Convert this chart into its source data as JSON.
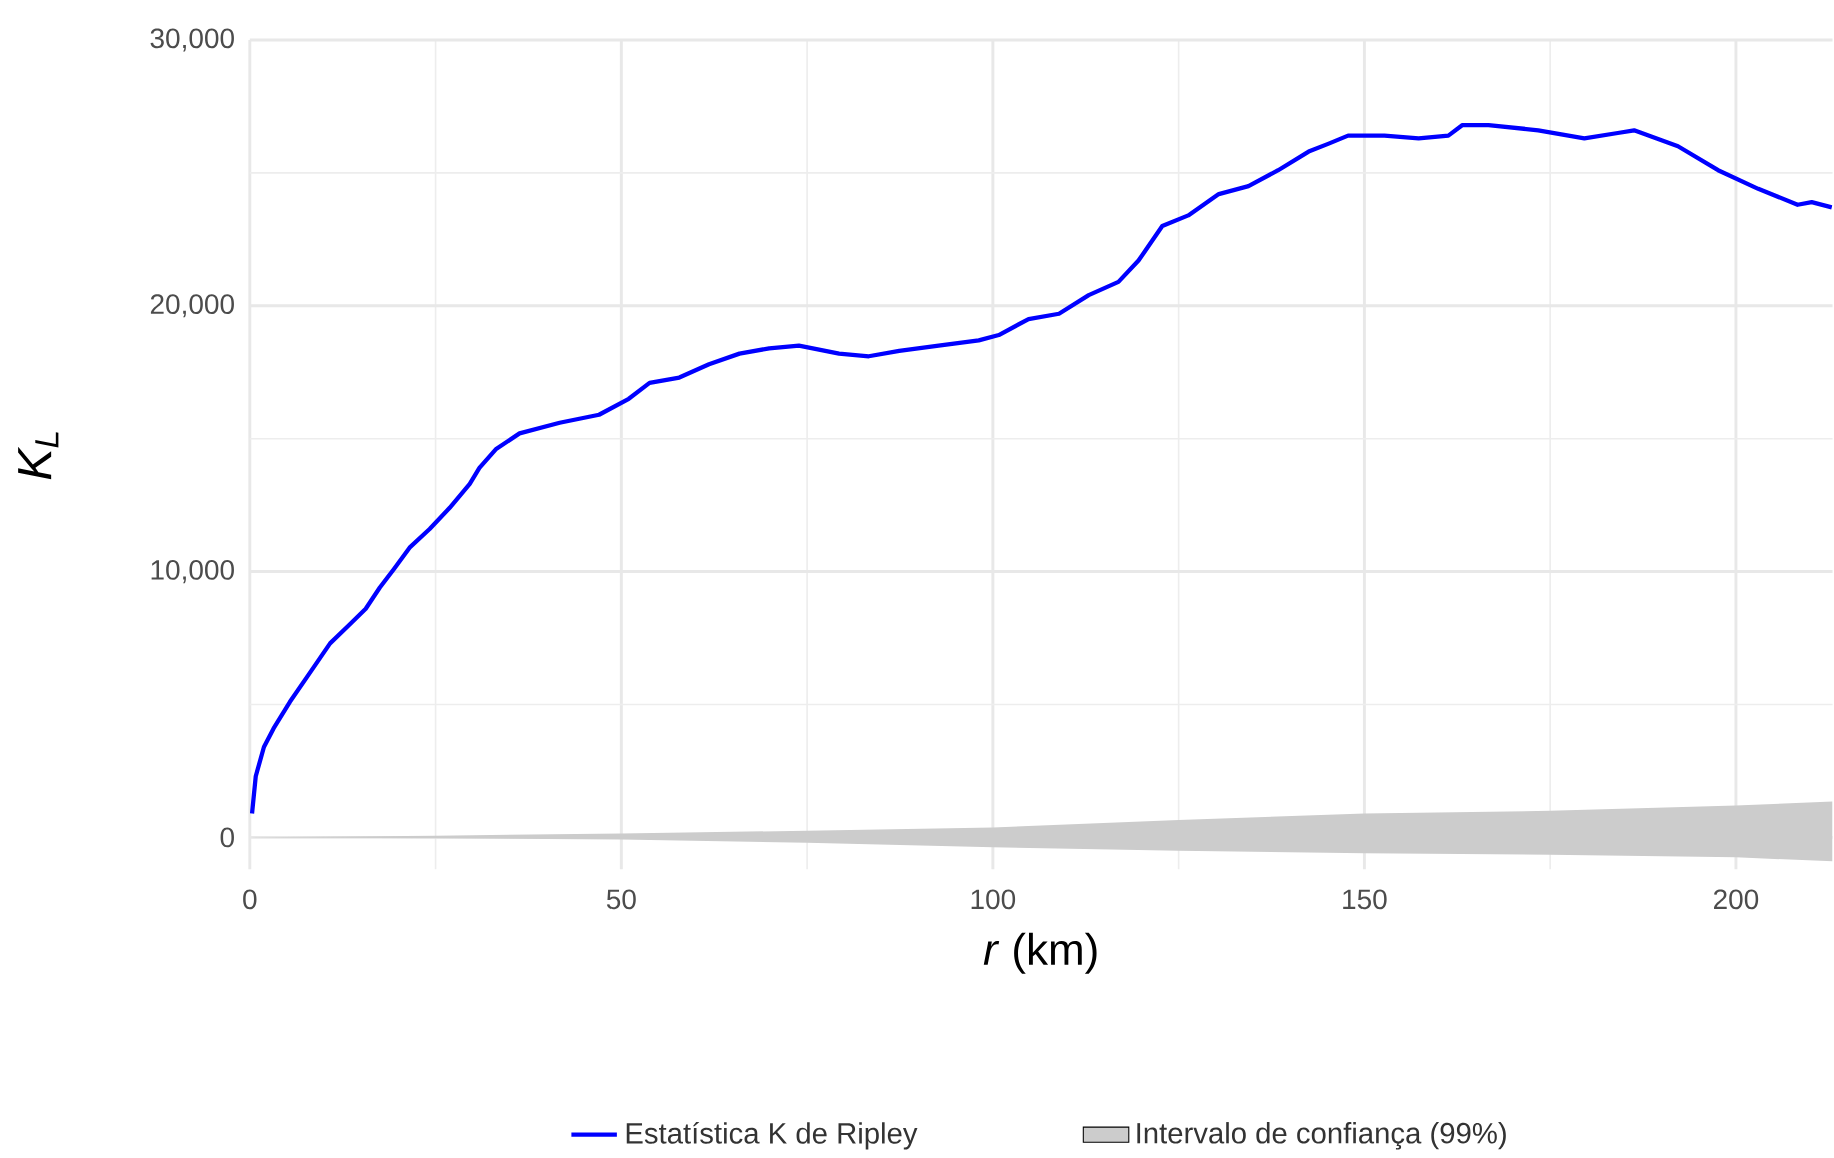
{
  "chart_data": {
    "type": "line",
    "xlabel": "*r* (km)",
    "ylabel": "K$_{L}$",
    "xlim": [
      0,
      213
    ],
    "ylim": [
      -1200,
      30000
    ],
    "xticks": [
      0,
      50,
      100,
      150,
      200
    ],
    "yticks": [
      {
        "value": 0,
        "label": "0"
      },
      {
        "value": 10000,
        "label": "10,000"
      },
      {
        "value": 20000,
        "label": "20,000"
      },
      {
        "value": 30000,
        "label": "30,000"
      }
    ],
    "grid": true,
    "legend": "bottom",
    "series": [
      {
        "name": "Estatística K de Ripley",
        "color": "#0000ff",
        "x": [
          0.3,
          0.8,
          1.9,
          3.2,
          5.4,
          8.1,
          10.8,
          13.4,
          15.6,
          17.5,
          19.4,
          21.5,
          24.2,
          26.9,
          29.6,
          30.9,
          33.1,
          36.3,
          41.7,
          47,
          51,
          53.8,
          57.8,
          61.8,
          65.9,
          69.9,
          73.9,
          79.3,
          83.3,
          87.4,
          92.7,
          98.1,
          100.8,
          104.8,
          108.9,
          112.9,
          116.9,
          119.6,
          122.8,
          126.3,
          130.4,
          134.4,
          138.4,
          142.5,
          145.2,
          147.8,
          152.7,
          157.3,
          161.3,
          163.2,
          166.7,
          173.4,
          179.6,
          184.1,
          186.3,
          192.2,
          197.6,
          203,
          208.3,
          210.2,
          212.9
        ],
        "values": [
          900,
          2300,
          3400,
          4100,
          5100,
          6200,
          7300,
          8000,
          8600,
          9400,
          10100,
          10900,
          11600,
          12400,
          13300,
          13900,
          14600,
          15200,
          15600,
          15900,
          16500,
          17100,
          17300,
          17800,
          18200,
          18400,
          18500,
          18200,
          18100,
          18300,
          18500,
          18700,
          18900,
          19500,
          19700,
          20400,
          20900,
          21700,
          23000,
          23400,
          24200,
          24500,
          25100,
          25800,
          26100,
          26400,
          26400,
          26300,
          26400,
          26800,
          26800,
          26600,
          26300,
          26500,
          26600,
          26000,
          25100,
          24400,
          23800,
          23900,
          23700
        ]
      },
      {
        "name": "Intervalo de confiança (99%)",
        "type": "area",
        "color": "#cccccc",
        "x": [
          0,
          25,
          50,
          75,
          100,
          125,
          150,
          175,
          200,
          213
        ],
        "values": [
          null,
          null,
          null,
          null,
          null,
          null,
          null,
          null,
          null,
          null
        ],
        "upper": [
          0,
          60,
          150,
          250,
          375,
          650,
          900,
          1000,
          1200,
          1350
        ],
        "lower": [
          0,
          -30,
          -75,
          -200,
          -375,
          -500,
          -600,
          -650,
          -750,
          -900
        ]
      }
    ]
  }
}
